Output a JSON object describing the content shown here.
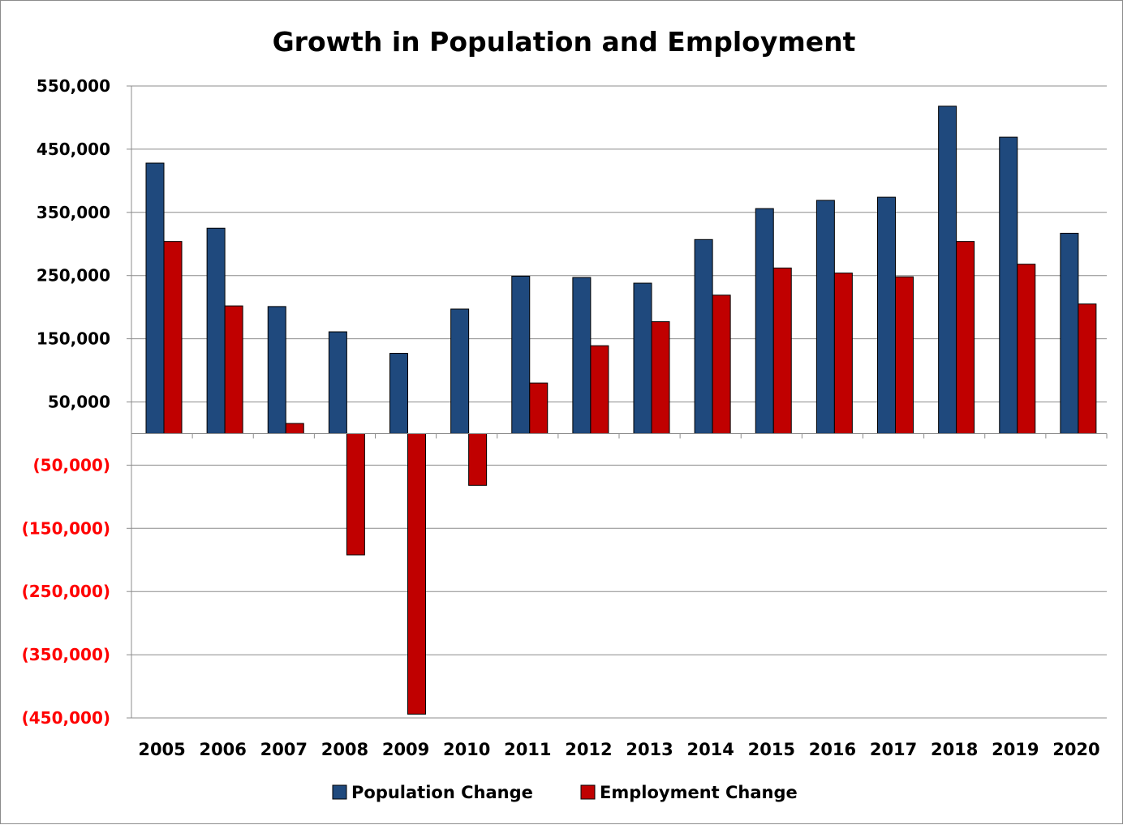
{
  "chart_data": {
    "type": "bar",
    "title": "Growth in Population and Employment",
    "xlabel": "",
    "ylabel": "",
    "categories": [
      "2005",
      "2006",
      "2007",
      "2008",
      "2009",
      "2010",
      "2011",
      "2012",
      "2013",
      "2014",
      "2015",
      "2016",
      "2017",
      "2018",
      "2019",
      "2020"
    ],
    "series": [
      {
        "name": "Population Change",
        "color": "#1F497D",
        "values": [
          428000,
          325000,
          201000,
          161000,
          127000,
          197000,
          249000,
          247000,
          238000,
          307000,
          356000,
          369000,
          374000,
          518000,
          469000,
          317000
        ]
      },
      {
        "name": "Employment Change",
        "color": "#C00000",
        "values": [
          304000,
          202000,
          16000,
          -192000,
          -444000,
          -82000,
          80000,
          139000,
          177000,
          219000,
          262000,
          254000,
          248000,
          304000,
          268000,
          205000
        ]
      }
    ],
    "ylim": [
      -450000,
      550000
    ],
    "yticks": [
      {
        "value": 550000,
        "label": "550,000",
        "color": "#000000"
      },
      {
        "value": 450000,
        "label": "450,000",
        "color": "#000000"
      },
      {
        "value": 350000,
        "label": "350,000",
        "color": "#000000"
      },
      {
        "value": 250000,
        "label": "250,000",
        "color": "#000000"
      },
      {
        "value": 150000,
        "label": "150,000",
        "color": "#000000"
      },
      {
        "value": 50000,
        "label": "50,000",
        "color": "#000000"
      },
      {
        "value": -50000,
        "label": "(50,000)",
        "color": "#FF0000"
      },
      {
        "value": -150000,
        "label": "(150,000)",
        "color": "#FF0000"
      },
      {
        "value": -250000,
        "label": "(250,000)",
        "color": "#FF0000"
      },
      {
        "value": -350000,
        "label": "(350,000)",
        "color": "#FF0000"
      },
      {
        "value": -450000,
        "label": "(450,000)",
        "color": "#FF0000"
      }
    ],
    "grid": true,
    "legend": "bottom"
  }
}
